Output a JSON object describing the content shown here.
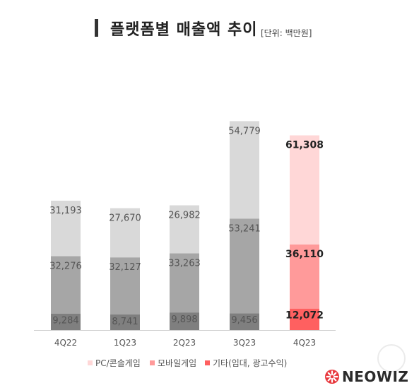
{
  "header": {
    "title": "플랫폼별 매출액 추이",
    "unit": "[단위: 백만원]"
  },
  "colors": {
    "pc_past": "#d9d9d9",
    "mobile_past": "#a6a6a6",
    "other_past": "#7f7f7f",
    "pc_current": "#ffd7d7",
    "mobile_current": "#ff9a9a",
    "other_current": "#ff6060",
    "baseline": "#d0d0d0"
  },
  "chart_data": {
    "type": "bar",
    "stacked": true,
    "categories": [
      "4Q22",
      "1Q23",
      "2Q23",
      "3Q23",
      "4Q23"
    ],
    "series": [
      {
        "name": "기타(임대, 광고수익)",
        "values": [
          9284,
          8741,
          9898,
          9456,
          12072
        ]
      },
      {
        "name": "모바일게임",
        "values": [
          32276,
          32127,
          33263,
          53241,
          36110
        ]
      },
      {
        "name": "PC/콘솔게임",
        "values": [
          31193,
          27670,
          26982,
          54779,
          61308
        ]
      }
    ],
    "data_labels": [
      [
        "9,284",
        "8,741",
        "9,898",
        "9,456",
        "12,072"
      ],
      [
        "32,276",
        "32,127",
        "33,263",
        "53,241",
        "36,110"
      ],
      [
        "31,193",
        "27,670",
        "26,982",
        "54,779",
        "61,308"
      ]
    ],
    "highlight_category": "4Q23",
    "legend_position": "bottom",
    "grid": false
  },
  "legend": {
    "pc": "PC/콘솔게임",
    "mobile": "모바일게임",
    "other": "기타(임대, 광고수익)"
  },
  "logo": {
    "text": "NEOWIZ"
  }
}
